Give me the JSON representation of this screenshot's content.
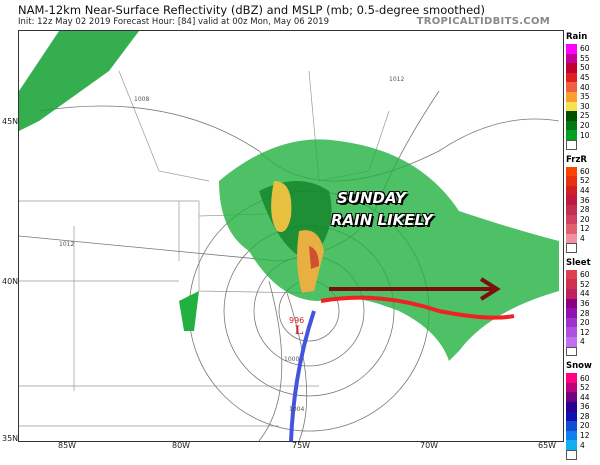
{
  "header": {
    "title": "NAM-12km Near-Surface Reflectivity (dBZ) and MSLP (mb; 0.5-degree smoothed)",
    "subtitle": "Init: 12z May 02 2019   Forecast Hour: [84]   valid at 00z Mon, May 06 2019",
    "brand": "TROPICALTIDBITS.COM"
  },
  "map": {
    "lat_labels": [
      "45N",
      "40N",
      "35N"
    ],
    "lon_labels": [
      "85W",
      "80W",
      "75W",
      "70W",
      "65W"
    ],
    "isobars": [
      "1012",
      "1008",
      "1012",
      "1004",
      "1000",
      "996"
    ],
    "low_pressure": {
      "symbol": "L",
      "value": "996"
    },
    "annotation": [
      "SUNDAY",
      "RAIN LIKELY"
    ],
    "colors": {
      "track_past": "#4455dd",
      "track_future": "#ee2222",
      "arrow": "#7a0f0f"
    }
  },
  "legend": [
    {
      "title": "Rain",
      "labels": [
        "60",
        "55",
        "50",
        "45",
        "40",
        "35",
        "30",
        "25",
        "20",
        "10"
      ],
      "colors": [
        "#ff00ff",
        "#c8009a",
        "#c00030",
        "#e02020",
        "#f06040",
        "#f8a030",
        "#f8e050",
        "#005000",
        "#007a10",
        "#00a020",
        "#00c830",
        "#00ff40"
      ]
    },
    {
      "title": "FrzR",
      "labels": [
        "60",
        "52",
        "44",
        "36",
        "28",
        "20",
        "12",
        "4"
      ],
      "colors": [
        "#ff4400",
        "#e83010",
        "#d02020",
        "#c01840",
        "#c03050",
        "#d04060",
        "#e06070",
        "#f090a0",
        "#ffb0c0",
        "#ffffff"
      ]
    },
    {
      "title": "Sleet",
      "labels": [
        "60",
        "52",
        "44",
        "36",
        "28",
        "20",
        "12",
        "4"
      ],
      "colors": [
        "#e04050",
        "#d03050",
        "#c02060",
        "#8a0080",
        "#9010b0",
        "#a030d0",
        "#b050e0",
        "#c070f0",
        "#d0a0f8",
        "#ffffff"
      ]
    },
    {
      "title": "Snow",
      "labels": [
        "60",
        "52",
        "44",
        "36",
        "28",
        "20",
        "12",
        "4"
      ],
      "colors": [
        "#ff0080",
        "#c0007a",
        "#700080",
        "#2a0090",
        "#1010b0",
        "#1050d0",
        "#1080f0",
        "#10b0f0",
        "#20d8f8",
        "#40ffff"
      ]
    }
  ]
}
